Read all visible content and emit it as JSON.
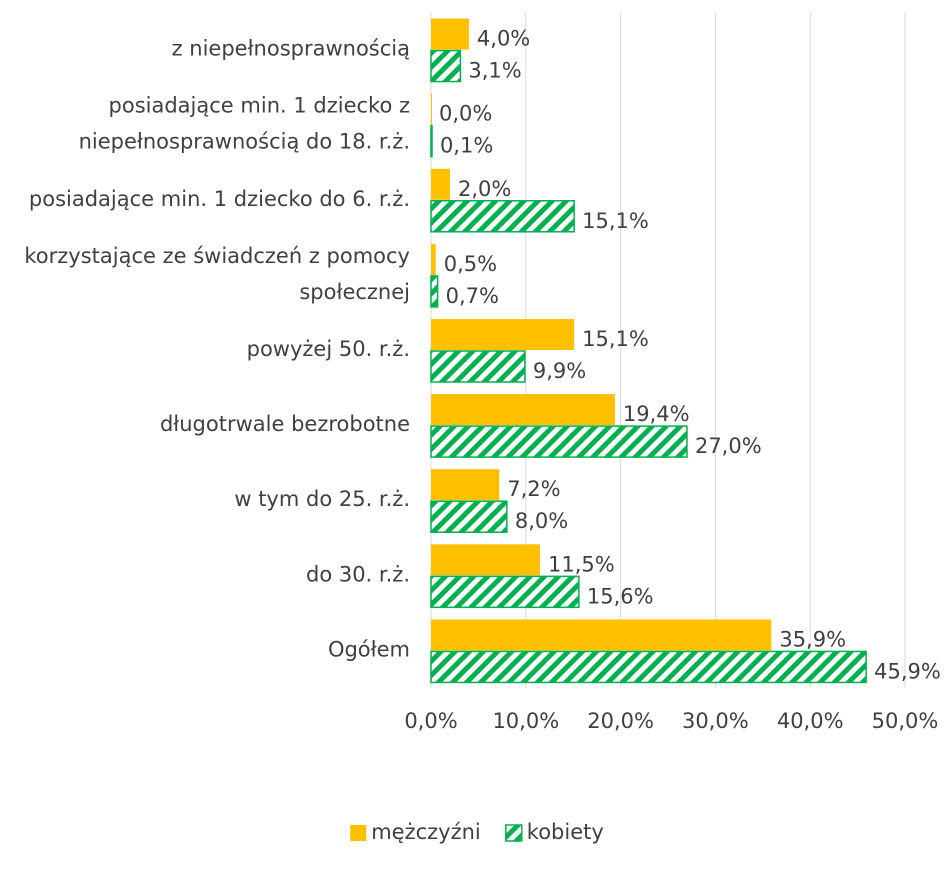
{
  "chart_data": {
    "type": "bar",
    "orientation": "horizontal",
    "categories": [
      "z niepełnosprawnością",
      "posiadające min. 1 dziecko z niepełnosprawnością do 18. r.ż.",
      "posiadające min. 1 dziecko do 6. r.ż.",
      "korzystające ze świadczeń z pomocy społecznej",
      "powyżej 50. r.ż.",
      "długotrwale bezrobotne",
      "w tym do 25. r.ż.",
      "do 30. r.ż.",
      "Ogółem"
    ],
    "series": [
      {
        "name": "mężczyźni",
        "color": "#ffc000",
        "pattern": "solid",
        "values": [
          4.0,
          0.0,
          2.0,
          0.5,
          15.1,
          19.4,
          7.2,
          11.5,
          35.9
        ],
        "value_labels": [
          "4,0%",
          "0,0%",
          "2,0%",
          "0,5%",
          "15,1%",
          "19,4%",
          "7,2%",
          "11,5%",
          "35,9%"
        ]
      },
      {
        "name": "kobiety",
        "color": "#00b050",
        "pattern": "hatch",
        "values": [
          3.1,
          0.1,
          15.1,
          0.7,
          9.9,
          27.0,
          8.0,
          15.6,
          45.9
        ],
        "value_labels": [
          "3,1%",
          "0,1%",
          "15,1%",
          "0,7%",
          "9,9%",
          "27,0%",
          "8,0%",
          "15,6%",
          "45,9%"
        ]
      }
    ],
    "xlim": [
      0,
      50
    ],
    "xticks": [
      {
        "value": 0,
        "label": "0,0%"
      },
      {
        "value": 10,
        "label": "10,0%"
      },
      {
        "value": 20,
        "label": "20,0%"
      },
      {
        "value": 30,
        "label": "30,0%"
      },
      {
        "value": 40,
        "label": "40,0%"
      },
      {
        "value": 50,
        "label": "50,0%"
      }
    ],
    "grid": true,
    "legend": "bottom"
  }
}
